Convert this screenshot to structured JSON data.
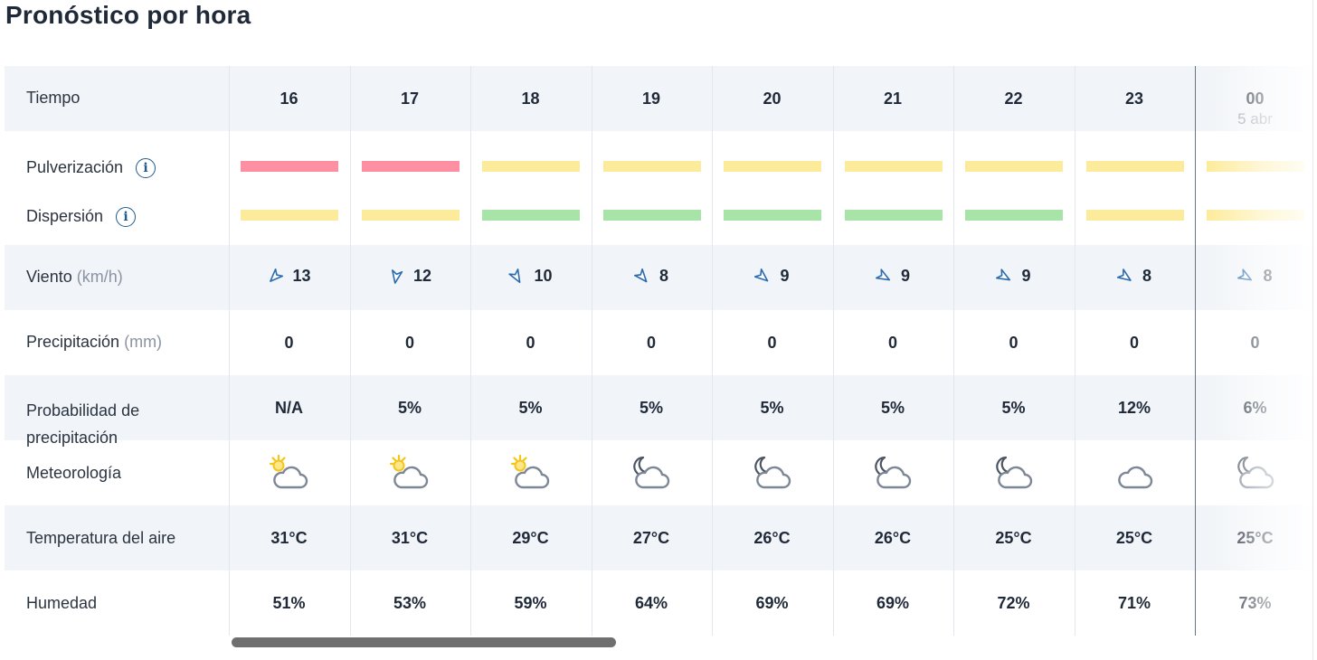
{
  "page_title": "Pronóstico por hora",
  "rows": {
    "time": "Tiempo",
    "spray": "Pulverización",
    "dispersion": "Dispersión",
    "wind": "Viento",
    "wind_unit": "(km/h)",
    "precip": "Precipitación",
    "precip_unit": "(mm)",
    "prob_line1": "Probabilidad de",
    "prob_line2": "precipitación",
    "weather": "Meteorología",
    "temp": "Temperatura del aire",
    "humidity": "Humedad"
  },
  "info_glyph": "i",
  "colors": {
    "red": "#fd8fa3",
    "yellow": "#fdeb9c",
    "green": "#a8e4a8",
    "accent": "#1e5a8a"
  },
  "hours": [
    {
      "hour": "16",
      "date": "",
      "spray": "red",
      "dispersion": "yellow",
      "wind": "13",
      "wind_dir": 225,
      "precip": "0",
      "prob": "N/A",
      "icon": "sun-cloud-icon",
      "temp": "31°C",
      "humidity": "51%"
    },
    {
      "hour": "17",
      "date": "",
      "spray": "red",
      "dispersion": "yellow",
      "wind": "12",
      "wind_dir": 190,
      "precip": "0",
      "prob": "5%",
      "icon": "sun-cloud-icon",
      "temp": "31°C",
      "humidity": "53%"
    },
    {
      "hour": "18",
      "date": "",
      "spray": "yellow",
      "dispersion": "green",
      "wind": "10",
      "wind_dir": 150,
      "precip": "0",
      "prob": "5%",
      "icon": "sun-cloud-icon",
      "temp": "29°C",
      "humidity": "59%"
    },
    {
      "hour": "19",
      "date": "",
      "spray": "yellow",
      "dispersion": "green",
      "wind": "8",
      "wind_dir": 140,
      "precip": "0",
      "prob": "5%",
      "icon": "moon-cloud-icon",
      "temp": "27°C",
      "humidity": "64%"
    },
    {
      "hour": "20",
      "date": "",
      "spray": "yellow",
      "dispersion": "green",
      "wind": "9",
      "wind_dir": 130,
      "precip": "0",
      "prob": "5%",
      "icon": "moon-cloud-icon",
      "temp": "26°C",
      "humidity": "69%"
    },
    {
      "hour": "21",
      "date": "",
      "spray": "yellow",
      "dispersion": "green",
      "wind": "9",
      "wind_dir": 120,
      "precip": "0",
      "prob": "5%",
      "icon": "moon-cloud-icon",
      "temp": "26°C",
      "humidity": "69%"
    },
    {
      "hour": "22",
      "date": "",
      "spray": "yellow",
      "dispersion": "green",
      "wind": "9",
      "wind_dir": 120,
      "precip": "0",
      "prob": "5%",
      "icon": "moon-cloud-icon",
      "temp": "25°C",
      "humidity": "72%"
    },
    {
      "hour": "23",
      "date": "",
      "spray": "yellow",
      "dispersion": "yellow",
      "wind": "8",
      "wind_dir": 125,
      "precip": "0",
      "prob": "12%",
      "icon": "cloud-icon",
      "temp": "25°C",
      "humidity": "71%"
    },
    {
      "hour": "00",
      "date": "5 abr",
      "spray": "yellow",
      "dispersion": "yellow",
      "wind": "8",
      "wind_dir": 120,
      "precip": "0",
      "prob": "6%",
      "icon": "moon-cloud-icon",
      "temp": "25°C",
      "humidity": "73%"
    }
  ]
}
